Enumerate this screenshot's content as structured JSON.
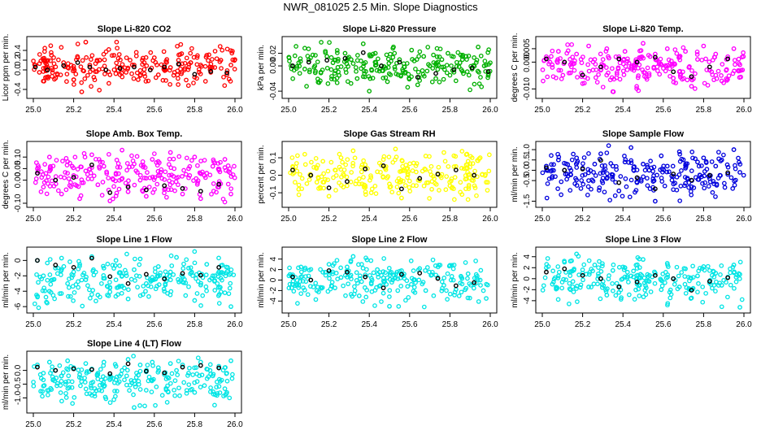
{
  "title": "NWR_081025  2.5 Min. Slope Diagnostics",
  "chart_data": [
    {
      "type": "scatter",
      "title": "Slope Li-820 CO2",
      "ylabel": "Licor ppm per min.",
      "color": "#ff0000",
      "xlim": [
        25.0,
        26.0
      ],
      "ylim": [
        -0.5,
        0.6
      ],
      "xticks": [
        "25.0",
        "25.2",
        "25.4",
        "25.6",
        "25.8",
        "26.0"
      ],
      "yticks": [
        {
          "v": -0.4,
          "t": "-0.4"
        },
        {
          "v": 0.0,
          "t": "0.0"
        },
        {
          "v": 0.2,
          "t": "0.2"
        },
        {
          "v": 0.4,
          "t": "0.4"
        }
      ],
      "x": [
        25.01,
        25.03,
        25.05,
        25.07,
        25.09,
        25.12,
        25.15,
        25.17,
        25.2,
        25.22,
        25.24,
        25.26,
        25.28,
        25.3,
        25.33,
        25.36,
        25.38,
        25.4,
        25.43,
        25.46,
        25.48,
        25.5,
        25.52,
        25.55,
        25.58,
        25.6,
        25.62,
        25.65,
        25.68,
        25.7,
        25.72,
        25.75,
        25.78,
        25.8,
        25.83,
        25.86,
        25.88,
        25.9,
        25.93,
        25.96,
        25.98
      ],
      "y": [
        0.1,
        -0.05,
        0.2,
        0.0,
        0.3,
        -0.1,
        0.15,
        0.05,
        -0.2,
        0.25,
        -0.45,
        0.57,
        0.1,
        -0.15,
        0.2,
        0.0,
        -0.1,
        0.3,
        0.05,
        -0.05,
        0.2,
        0.1,
        -0.2,
        0.15,
        0.0,
        0.25,
        -0.1,
        0.1,
        0.05,
        -0.05,
        0.2,
        0.0,
        0.15,
        -0.15,
        0.1,
        0.3,
        -0.05,
        0.05,
        0.2,
        -0.1,
        0.1
      ]
    },
    {
      "type": "scatter",
      "title": "Slope Li-820 Pressure",
      "ylabel": "kPa per min.",
      "color": "#00b000",
      "xlim": [
        25.0,
        26.0
      ],
      "ylim": [
        -0.045,
        0.04
      ],
      "xticks": [
        "25.0",
        "25.2",
        "25.4",
        "25.6",
        "25.8",
        "26.0"
      ],
      "yticks": [
        {
          "v": -0.04,
          "t": "-0.04"
        },
        {
          "v": 0.0,
          "t": "0.00"
        },
        {
          "v": 0.02,
          "t": "0.02"
        }
      ],
      "x": [
        25.02,
        25.05,
        25.08,
        25.1,
        25.13,
        25.16,
        25.19,
        25.22,
        25.25,
        25.28,
        25.31,
        25.34,
        25.37,
        25.4,
        25.43,
        25.46,
        25.49,
        25.52,
        25.55,
        25.58,
        25.61,
        25.64,
        25.67,
        25.7,
        25.73,
        25.76,
        25.79,
        25.82,
        25.85,
        25.88,
        25.91,
        25.94,
        25.97,
        25.99
      ],
      "y": [
        0.0,
        0.005,
        -0.005,
        0.01,
        0.0,
        -0.01,
        0.015,
        0.005,
        -0.015,
        0.02,
        0.01,
        -0.02,
        0.035,
        -0.04,
        0.02,
        0.0,
        -0.025,
        0.03,
        0.01,
        -0.01,
        0.025,
        -0.03,
        0.015,
        0.0,
        -0.02,
        0.01,
        0.02,
        -0.01,
        0.005,
        0.015,
        -0.005,
        0.03,
        0.0,
        -0.015
      ]
    },
    {
      "type": "scatter",
      "title": "Slope Li-820 Temp.",
      "ylabel": "degrees C per min.",
      "color": "#ff00ff",
      "xlim": [
        25.0,
        26.0
      ],
      "ylim": [
        -0.012,
        0.008
      ],
      "xticks": [
        "25.0",
        "25.2",
        "25.4",
        "25.6",
        "25.8",
        "26.0"
      ],
      "yticks": [
        {
          "v": -0.01,
          "t": "-0.010"
        },
        {
          "v": 0.0,
          "t": "0.000"
        },
        {
          "v": 0.005,
          "t": "0.005"
        }
      ],
      "x": [
        25.02,
        25.05,
        25.08,
        25.11,
        25.14,
        25.17,
        25.2,
        25.23,
        25.26,
        25.29,
        25.32,
        25.35,
        25.38,
        25.41,
        25.44,
        25.47,
        25.5,
        25.53,
        25.56,
        25.59,
        25.62,
        25.65,
        25.68,
        25.71,
        25.74,
        25.77,
        25.8,
        25.83,
        25.86,
        25.89,
        25.92,
        25.95,
        25.98
      ],
      "y": [
        0.002,
        -0.002,
        0.004,
        0.0,
        -0.004,
        0.003,
        -0.008,
        0.006,
        0.001,
        -0.003,
        0.005,
        -0.011,
        0.002,
        0.004,
        -0.002,
        0.0,
        0.007,
        -0.005,
        0.003,
        -0.001,
        0.005,
        -0.006,
        0.002,
        0.004,
        -0.009,
        0.001,
        0.006,
        -0.003,
        0.003,
        -0.007,
        0.002,
        0.005,
        -0.001
      ]
    },
    {
      "type": "scatter",
      "title": "Slope Amb. Box Temp.",
      "ylabel": "degrees C per min.",
      "color": "#ff00ff",
      "xlim": [
        25.0,
        26.0
      ],
      "ylim": [
        -0.1,
        0.15
      ],
      "xticks": [
        "25.0",
        "25.2",
        "25.4",
        "25.6",
        "25.8",
        "26.0"
      ],
      "yticks": [
        {
          "v": -0.1,
          "t": "-0.10"
        },
        {
          "v": 0.0,
          "t": "0.00"
        },
        {
          "v": 0.05,
          "t": "0.05"
        },
        {
          "v": 0.1,
          "t": "0.10"
        }
      ],
      "x": [
        25.02,
        25.05,
        25.08,
        25.11,
        25.14,
        25.17,
        25.2,
        25.23,
        25.26,
        25.29,
        25.32,
        25.35,
        25.38,
        25.41,
        25.44,
        25.47,
        25.5,
        25.53,
        25.56,
        25.59,
        25.62,
        25.65,
        25.68,
        25.71,
        25.74,
        25.77,
        25.8,
        25.83,
        25.86,
        25.89,
        25.92,
        25.95,
        25.98
      ],
      "y": [
        0.05,
        -0.03,
        0.1,
        0.0,
        -0.06,
        0.08,
        0.02,
        -0.08,
        0.04,
        0.11,
        -0.02,
        0.06,
        -0.09,
        0.03,
        0.13,
        -0.05,
        0.07,
        0.0,
        -0.07,
        0.09,
        0.02,
        -0.04,
        0.12,
        0.01,
        -0.06,
        0.05,
        0.1,
        -0.08,
        0.03,
        0.06,
        -0.03,
        0.09,
        -0.06
      ]
    },
    {
      "type": "scatter",
      "title": "Slope Gas Stream RH",
      "ylabel": "percent per min.",
      "color": "#ffff00",
      "xlim": [
        25.0,
        26.0
      ],
      "ylim": [
        -0.16,
        0.17
      ],
      "xticks": [
        "25.0",
        "25.2",
        "25.4",
        "25.6",
        "25.8",
        "26.0"
      ],
      "yticks": [
        {
          "v": -0.1,
          "t": "-0.1"
        },
        {
          "v": 0.0,
          "t": "0.0"
        },
        {
          "v": 0.1,
          "t": "0.1"
        }
      ],
      "x": [
        25.02,
        25.05,
        25.08,
        25.11,
        25.14,
        25.17,
        25.2,
        25.23,
        25.26,
        25.29,
        25.32,
        25.35,
        25.38,
        25.41,
        25.44,
        25.47,
        25.5,
        25.53,
        25.56,
        25.59,
        25.62,
        25.65,
        25.68,
        25.71,
        25.74,
        25.77,
        25.8,
        25.83,
        25.86,
        25.89,
        25.92,
        25.95,
        25.98
      ],
      "y": [
        0.05,
        -0.08,
        0.12,
        0.0,
        -0.04,
        0.08,
        -0.12,
        0.03,
        0.1,
        -0.06,
        0.14,
        -0.02,
        0.06,
        -0.1,
        0.02,
        0.09,
        -0.05,
        0.15,
        -0.13,
        0.04,
        0.07,
        -0.03,
        0.11,
        -0.08,
        0.01,
        0.13,
        -0.06,
        0.05,
        -0.11,
        0.08,
        0.0,
        0.1,
        -0.04
      ]
    },
    {
      "type": "scatter",
      "title": "Slope Sample Flow",
      "ylabel": "ml/min per min.",
      "color": "#0000dd",
      "xlim": [
        25.0,
        26.0
      ],
      "ylim": [
        -1.6,
        1.2
      ],
      "xticks": [
        "25.0",
        "25.2",
        "25.4",
        "25.6",
        "25.8",
        "26.0"
      ],
      "yticks": [
        {
          "v": -1.5,
          "t": "-1.5"
        },
        {
          "v": -0.5,
          "t": "-0.5"
        },
        {
          "v": 0.0,
          "t": "0.0"
        },
        {
          "v": 0.5,
          "t": "0.5"
        },
        {
          "v": 1.0,
          "t": "1.0"
        }
      ],
      "x": [
        25.02,
        25.05,
        25.08,
        25.11,
        25.14,
        25.17,
        25.2,
        25.23,
        25.26,
        25.29,
        25.32,
        25.35,
        25.38,
        25.41,
        25.44,
        25.47,
        25.5,
        25.53,
        25.56,
        25.59,
        25.62,
        25.65,
        25.68,
        25.71,
        25.74,
        25.77,
        25.8,
        25.83,
        25.86,
        25.89,
        25.92,
        25.95,
        25.98
      ],
      "y": [
        0.2,
        -0.3,
        0.5,
        0.0,
        -0.2,
        0.6,
        0.1,
        -0.5,
        0.3,
        0.8,
        -0.4,
        0.2,
        -1.0,
        0.4,
        1.1,
        -0.6,
        0.3,
        0.0,
        -1.5,
        0.7,
        0.2,
        -0.3,
        0.9,
        0.1,
        -0.8,
        0.4,
        0.6,
        -0.4,
        0.2,
        0.5,
        -0.2,
        1.0,
        -0.1
      ]
    },
    {
      "type": "scatter",
      "title": "Slope Line 1 Flow",
      "ylabel": "ml/min per min.",
      "color": "#00e5e5",
      "xlim": [
        25.0,
        26.0
      ],
      "ylim": [
        -6.3,
        1.2
      ],
      "xticks": [
        "25.0",
        "25.2",
        "25.4",
        "25.6",
        "25.8",
        "26.0"
      ],
      "yticks": [
        {
          "v": -6,
          "t": "-6"
        },
        {
          "v": -4,
          "t": "-4"
        },
        {
          "v": -2,
          "t": "-2"
        },
        {
          "v": 0,
          "t": "0"
        }
      ],
      "x": [
        25.02,
        25.05,
        25.08,
        25.11,
        25.14,
        25.17,
        25.2,
        25.23,
        25.26,
        25.29,
        25.32,
        25.35,
        25.38,
        25.41,
        25.44,
        25.47,
        25.5,
        25.53,
        25.56,
        25.59,
        25.62,
        25.65,
        25.68,
        25.71,
        25.74,
        25.77,
        25.8,
        25.83,
        25.86,
        25.89,
        25.92,
        25.95,
        25.98
      ],
      "y": [
        0.0,
        -2.0,
        -4.0,
        -1.0,
        0.3,
        -3.0,
        -1.5,
        -0.5,
        -2.5,
        0.5,
        -4.5,
        -1.0,
        -3.5,
        0.0,
        -2.0,
        -5.0,
        -1.2,
        0.2,
        -3.0,
        -2.2,
        -0.8,
        -4.0,
        -1.5,
        0.4,
        -2.8,
        -1.0,
        -5.2,
        -3.2,
        -0.5,
        -2.0,
        -1.5,
        -4.2,
        -6.0
      ]
    },
    {
      "type": "scatter",
      "title": "Slope Line 2 Flow",
      "ylabel": "ml/min per min.",
      "color": "#00e5e5",
      "xlim": [
        25.0,
        26.0
      ],
      "ylim": [
        -5.5,
        5.5
      ],
      "xticks": [
        "25.0",
        "25.2",
        "25.4",
        "25.6",
        "25.8",
        "26.0"
      ],
      "yticks": [
        {
          "v": -4,
          "t": "-4"
        },
        {
          "v": -2,
          "t": "-2"
        },
        {
          "v": 0,
          "t": "0"
        },
        {
          "v": 2,
          "t": "2"
        },
        {
          "v": 4,
          "t": "4"
        }
      ],
      "x": [
        25.02,
        25.05,
        25.08,
        25.11,
        25.14,
        25.17,
        25.2,
        25.23,
        25.26,
        25.29,
        25.32,
        25.35,
        25.38,
        25.41,
        25.44,
        25.47,
        25.5,
        25.53,
        25.56,
        25.59,
        25.62,
        25.65,
        25.68,
        25.71,
        25.74,
        25.77,
        25.8,
        25.83,
        25.86,
        25.89,
        25.92,
        25.95,
        25.98
      ],
      "y": [
        1.0,
        -1.0,
        2.0,
        0.0,
        -2.0,
        1.5,
        3.0,
        -1.5,
        0.5,
        2.5,
        4.5,
        -3.0,
        1.0,
        -0.5,
        2.0,
        -2.5,
        -5.0,
        0.5,
        1.8,
        -1.2,
        0.0,
        2.2,
        -2.0,
        1.0,
        0.5,
        -1.0,
        2.8,
        -1.8,
        0.3,
        1.2,
        -0.8,
        0.0,
        -3.5
      ]
    },
    {
      "type": "scatter",
      "title": "Slope Line 3 Flow",
      "ylabel": "ml/min per min.",
      "color": "#00e5e5",
      "xlim": [
        25.0,
        26.0
      ],
      "ylim": [
        -5.5,
        5.0
      ],
      "xticks": [
        "25.0",
        "25.2",
        "25.4",
        "25.6",
        "25.8",
        "26.0"
      ],
      "yticks": [
        {
          "v": -4,
          "t": "-4"
        },
        {
          "v": -2,
          "t": "-2"
        },
        {
          "v": 0,
          "t": "0"
        },
        {
          "v": 2,
          "t": "2"
        },
        {
          "v": 4,
          "t": "4"
        }
      ],
      "x": [
        25.02,
        25.05,
        25.08,
        25.11,
        25.14,
        25.17,
        25.2,
        25.23,
        25.26,
        25.29,
        25.32,
        25.35,
        25.38,
        25.41,
        25.44,
        25.47,
        25.5,
        25.53,
        25.56,
        25.59,
        25.62,
        25.65,
        25.68,
        25.71,
        25.74,
        25.77,
        25.8,
        25.83,
        25.86,
        25.89,
        25.92,
        25.95,
        25.98
      ],
      "y": [
        2.0,
        -1.0,
        0.5,
        3.0,
        -2.0,
        4.5,
        1.0,
        -1.5,
        2.5,
        0.0,
        -3.0,
        1.5,
        -2.5,
        2.0,
        0.5,
        -1.0,
        3.5,
        -0.5,
        1.0,
        -2.0,
        2.8,
        0.0,
        -1.5,
        1.8,
        -3.5,
        0.5,
        2.2,
        -0.8,
        1.0,
        -1.2,
        0.3,
        2.5,
        -5.2
      ]
    },
    {
      "type": "scatter",
      "title": "Slope Line 4 (LT) Flow",
      "ylabel": "ml/min per min.",
      "color": "#00e5e5",
      "xlim": [
        25.0,
        26.0
      ],
      "ylim": [
        -1.4,
        0.55
      ],
      "xticks": [
        "25.0",
        "25.2",
        "25.4",
        "25.6",
        "25.8",
        "26.0"
      ],
      "yticks": [
        {
          "v": -1.0,
          "t": "-1.0"
        },
        {
          "v": -0.5,
          "t": "-0.5"
        },
        {
          "v": 0.0,
          "t": "0.0"
        }
      ],
      "x": [
        25.02,
        25.05,
        25.08,
        25.11,
        25.14,
        25.17,
        25.2,
        25.23,
        25.26,
        25.29,
        25.32,
        25.35,
        25.38,
        25.41,
        25.44,
        25.47,
        25.5,
        25.53,
        25.56,
        25.59,
        25.62,
        25.65,
        25.68,
        25.71,
        25.74,
        25.77,
        25.8,
        25.83,
        25.86,
        25.89,
        25.92,
        25.95,
        25.98
      ],
      "y": [
        0.2,
        -0.1,
        0.3,
        0.0,
        -0.2,
        0.35,
        0.1,
        -0.15,
        0.25,
        0.05,
        -0.1,
        0.3,
        -0.2,
        0.15,
        0.0,
        0.4,
        -1.35,
        0.2,
        -0.05,
        0.3,
        0.1,
        -0.15,
        0.25,
        0.0,
        0.2,
        -0.1,
        -0.8,
        0.3,
        0.05,
        -0.2,
        0.15,
        0.1,
        0.35
      ]
    }
  ]
}
